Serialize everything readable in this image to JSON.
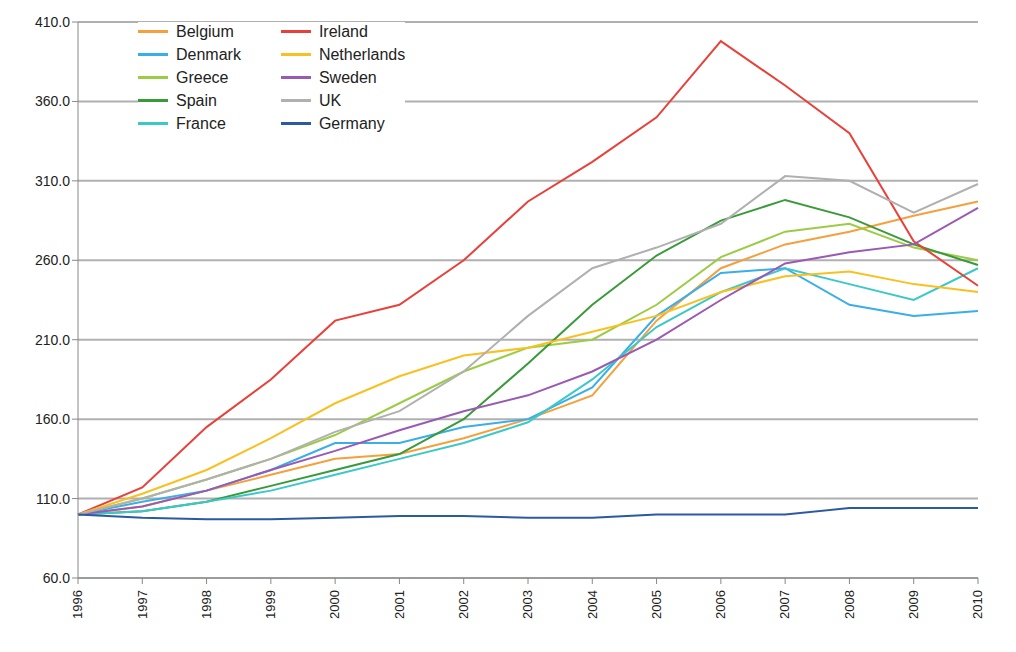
{
  "chart_data": {
    "type": "line",
    "categories": [
      "1996",
      "1997",
      "1998",
      "1999",
      "2000",
      "2001",
      "2002",
      "2003",
      "2004",
      "2005",
      "2006",
      "2007",
      "2008",
      "2009",
      "2010"
    ],
    "series": [
      {
        "name": "Belgium",
        "color": "#f5a03c",
        "values": [
          100,
          105,
          115,
          125,
          135,
          138,
          148,
          160,
          175,
          222,
          255,
          270,
          278,
          288,
          297
        ]
      },
      {
        "name": "Denmark",
        "color": "#3aaee8",
        "values": [
          100,
          108,
          115,
          128,
          145,
          145,
          155,
          160,
          180,
          225,
          252,
          255,
          232,
          225,
          228
        ]
      },
      {
        "name": "Greece",
        "color": "#9ccc44",
        "values": [
          100,
          110,
          122,
          135,
          150,
          170,
          190,
          205,
          210,
          232,
          262,
          278,
          283,
          268,
          260
        ]
      },
      {
        "name": "Spain",
        "color": "#3a9a3a",
        "values": [
          100,
          102,
          108,
          118,
          128,
          138,
          160,
          195,
          232,
          263,
          285,
          298,
          287,
          270,
          257
        ]
      },
      {
        "name": "France",
        "color": "#3cc8c8",
        "values": [
          100,
          102,
          108,
          115,
          125,
          135,
          145,
          158,
          185,
          218,
          240,
          255,
          245,
          235,
          255
        ]
      },
      {
        "name": "Ireland",
        "color": "#e8413a",
        "values": [
          100,
          117,
          155,
          185,
          222,
          232,
          260,
          297,
          322,
          350,
          398,
          370,
          340,
          272,
          244
        ]
      },
      {
        "name": "Netherlands",
        "color": "#f8c020",
        "values": [
          100,
          113,
          128,
          148,
          170,
          187,
          200,
          205,
          215,
          225,
          240,
          250,
          253,
          245,
          240
        ]
      },
      {
        "name": "Sweden",
        "color": "#9a5ab4",
        "values": [
          100,
          105,
          115,
          128,
          140,
          153,
          165,
          175,
          190,
          210,
          235,
          258,
          265,
          270,
          293
        ]
      },
      {
        "name": "UK",
        "color": "#b0b0b0",
        "values": [
          100,
          110,
          122,
          135,
          152,
          165,
          190,
          225,
          255,
          268,
          283,
          313,
          310,
          290,
          308
        ]
      },
      {
        "name": "Germany",
        "color": "#2c5aa0",
        "values": [
          100,
          98,
          97,
          97,
          98,
          99,
          99,
          98,
          98,
          100,
          100,
          100,
          104,
          104,
          104
        ]
      }
    ],
    "ylim": [
      60,
      410
    ],
    "yticks": [
      {
        "value": 60,
        "label": "60.0"
      },
      {
        "value": 110,
        "label": "110.0"
      },
      {
        "value": 160,
        "label": "160.0"
      },
      {
        "value": 210,
        "label": "210.0"
      },
      {
        "value": 260,
        "label": "260.0"
      },
      {
        "value": 310,
        "label": "310.0"
      },
      {
        "value": 360,
        "label": "360.0"
      },
      {
        "value": 410,
        "label": "410.0"
      }
    ],
    "grid": true,
    "legend": "upper left"
  }
}
